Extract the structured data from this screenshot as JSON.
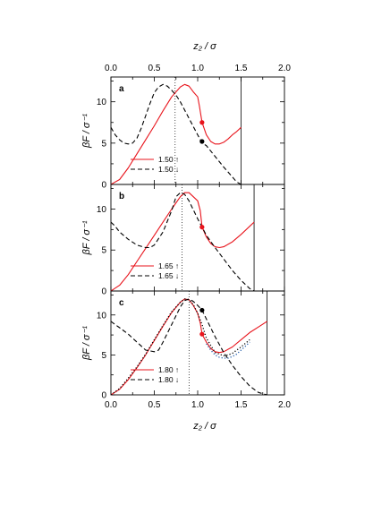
{
  "chart_data": [
    {
      "type": "line",
      "panel": "a",
      "panel_label": "a",
      "xlabel": "z₂ / σ",
      "top_xlabel": "z₂ / σ",
      "ylabel": "βF / σ⁻¹",
      "xlim": [
        0,
        2.0
      ],
      "ylim": [
        0,
        13
      ],
      "xticks": [
        "0.0",
        "0.5",
        "1.0",
        "1.5",
        "2.0"
      ],
      "yticks": [
        "0",
        "5",
        "10"
      ],
      "wall_x": 1.5,
      "dotted_vline_x": 0.74,
      "legend_position": "bottom-left",
      "series": [
        {
          "name": "1.50 ↑",
          "style": "solid",
          "color": "#e8141c",
          "x": [
            0,
            0.1,
            0.2,
            0.3,
            0.4,
            0.5,
            0.6,
            0.7,
            0.8,
            0.85,
            0.9,
            0.95,
            1.0,
            1.02,
            1.05,
            1.1,
            1.15,
            1.2,
            1.25,
            1.3,
            1.35,
            1.4,
            1.45,
            1.5
          ],
          "y": [
            0,
            0.6,
            2.0,
            3.7,
            5.4,
            7.1,
            8.9,
            10.6,
            11.8,
            12.1,
            11.9,
            11.2,
            10.6,
            9.5,
            7.5,
            6.0,
            5.2,
            4.9,
            4.9,
            5.1,
            5.5,
            6.0,
            6.4,
            6.9
          ]
        },
        {
          "name": "1.50 ↓",
          "style": "dashed",
          "color": "#000000",
          "x": [
            0,
            0.05,
            0.1,
            0.15,
            0.2,
            0.25,
            0.3,
            0.35,
            0.4,
            0.45,
            0.5,
            0.55,
            0.6,
            0.65,
            0.7,
            0.75,
            0.8,
            0.9,
            1.0,
            1.05,
            1.1,
            1.2,
            1.3,
            1.4,
            1.45,
            1.5
          ],
          "y": [
            6.9,
            6.0,
            5.4,
            5.0,
            4.9,
            5.0,
            5.6,
            6.8,
            8.3,
            9.8,
            11.1,
            11.8,
            12.1,
            11.9,
            11.4,
            10.8,
            10.0,
            8.0,
            6.0,
            5.0,
            4.7,
            3.4,
            2.1,
            0.9,
            0.3,
            0
          ]
        }
      ],
      "markers": [
        {
          "x": 1.05,
          "y": 7.5,
          "color": "#e8141c"
        },
        {
          "x": 1.05,
          "y": 5.2,
          "color": "#000000"
        }
      ]
    },
    {
      "type": "line",
      "panel": "b",
      "panel_label": "b",
      "ylabel": "βF / σ⁻¹",
      "xlim": [
        0,
        2.0
      ],
      "ylim": [
        0,
        13
      ],
      "yticks": [
        "0",
        "5",
        "10"
      ],
      "wall_x": 1.65,
      "dotted_vline_x": 0.82,
      "legend_position": "bottom-left",
      "series": [
        {
          "name": "1.65 ↑",
          "style": "solid",
          "color": "#e8141c",
          "x": [
            0,
            0.1,
            0.2,
            0.3,
            0.4,
            0.5,
            0.6,
            0.7,
            0.8,
            0.85,
            0.9,
            0.95,
            1.0,
            1.03,
            1.05,
            1.1,
            1.15,
            1.2,
            1.25,
            1.3,
            1.4,
            1.5,
            1.6,
            1.65
          ],
          "y": [
            0,
            0.7,
            2.0,
            3.6,
            5.2,
            6.8,
            8.4,
            10.0,
            11.5,
            12.0,
            12.0,
            11.5,
            11.0,
            9.8,
            7.8,
            6.6,
            5.8,
            5.4,
            5.3,
            5.4,
            6.0,
            6.9,
            7.9,
            8.4
          ]
        },
        {
          "name": "1.65 ↓",
          "style": "dashed",
          "color": "#000000",
          "x": [
            0,
            0.05,
            0.1,
            0.2,
            0.3,
            0.4,
            0.45,
            0.5,
            0.6,
            0.7,
            0.75,
            0.8,
            0.85,
            0.9,
            1.0,
            1.05,
            1.1,
            1.2,
            1.3,
            1.4,
            1.5,
            1.6,
            1.65
          ],
          "y": [
            8.4,
            7.9,
            7.2,
            6.3,
            5.6,
            5.3,
            5.3,
            5.6,
            7.2,
            9.8,
            11.5,
            12.0,
            11.8,
            11.0,
            8.8,
            7.8,
            6.8,
            5.3,
            3.9,
            2.5,
            1.3,
            0.3,
            0
          ]
        }
      ],
      "markers": [
        {
          "x": 1.05,
          "y": 7.8,
          "color": "#e8141c"
        }
      ]
    },
    {
      "type": "line",
      "panel": "c",
      "panel_label": "c",
      "xlabel": "z₂ / σ",
      "ylabel": "βF / σ⁻¹",
      "xlim": [
        0,
        2.0
      ],
      "ylim": [
        0,
        13
      ],
      "xticks": [
        "0.0",
        "0.5",
        "1.0",
        "1.5",
        "2.0"
      ],
      "yticks": [
        "0",
        "5",
        "10"
      ],
      "wall_x": 1.8,
      "dotted_vline_x": 0.9,
      "legend_position": "bottom-left",
      "series": [
        {
          "name": "1.80 ↑",
          "style": "solid",
          "color": "#e8141c",
          "x": [
            0,
            0.1,
            0.2,
            0.3,
            0.4,
            0.5,
            0.6,
            0.7,
            0.8,
            0.85,
            0.9,
            0.95,
            1.0,
            1.03,
            1.05,
            1.1,
            1.15,
            1.2,
            1.25,
            1.3,
            1.4,
            1.5,
            1.6,
            1.7,
            1.8
          ],
          "y": [
            0,
            0.7,
            1.9,
            3.4,
            5.0,
            6.8,
            8.6,
            10.3,
            11.6,
            12.0,
            11.9,
            11.2,
            10.2,
            9.0,
            7.6,
            6.6,
            5.8,
            5.4,
            5.3,
            5.4,
            6.0,
            6.9,
            7.8,
            8.5,
            9.2
          ]
        },
        {
          "name": "1.80 ↓",
          "style": "dashed",
          "color": "#000000",
          "x": [
            0,
            0.05,
            0.1,
            0.2,
            0.3,
            0.4,
            0.5,
            0.55,
            0.6,
            0.7,
            0.8,
            0.85,
            0.9,
            0.95,
            1.0,
            1.05,
            1.1,
            1.2,
            1.3,
            1.4,
            1.5,
            1.6,
            1.7,
            1.8
          ],
          "y": [
            9.2,
            8.8,
            8.4,
            7.6,
            6.6,
            5.6,
            5.4,
            5.6,
            6.6,
            8.8,
            11.0,
            11.8,
            12.0,
            11.7,
            11.2,
            10.6,
            9.5,
            7.3,
            5.3,
            3.7,
            2.3,
            1.1,
            0.3,
            0
          ]
        },
        {
          "name": "",
          "style": "dotted",
          "color": "#000000",
          "x": [
            0,
            0.1,
            0.2,
            0.3,
            0.4,
            0.5,
            0.6,
            0.7,
            0.8,
            0.85,
            0.9,
            0.95,
            1.0,
            1.05,
            1.1,
            1.2,
            1.3,
            1.35,
            1.4,
            1.5,
            1.6
          ],
          "y": [
            0,
            0.8,
            2.1,
            3.5,
            5.1,
            6.9,
            8.7,
            10.4,
            11.6,
            12.0,
            11.9,
            11.3,
            10.2,
            8.8,
            7.1,
            5.3,
            4.9,
            5.0,
            5.2,
            6.0,
            6.9
          ]
        },
        {
          "name": "",
          "style": "dotted",
          "color": "#1e5aa8",
          "x": [
            1.1,
            1.15,
            1.2,
            1.25,
            1.3,
            1.35,
            1.4,
            1.45,
            1.5,
            1.55,
            1.6
          ],
          "y": [
            6.4,
            5.6,
            5.0,
            4.7,
            4.6,
            4.6,
            4.8,
            5.1,
            5.6,
            6.1,
            6.6
          ]
        }
      ],
      "markers": [
        {
          "x": 1.05,
          "y": 7.6,
          "color": "#e8141c"
        },
        {
          "x": 1.05,
          "y": 10.6,
          "color": "#000000"
        }
      ]
    }
  ]
}
